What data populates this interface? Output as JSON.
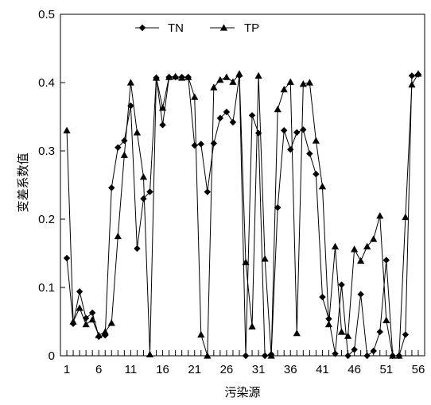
{
  "chart_data": {
    "type": "line",
    "xlabel": "污染源",
    "ylabel": "变差系数值",
    "xlim": [
      0,
      57
    ],
    "ylim": [
      0,
      0.5
    ],
    "x_ticks": [
      1,
      6,
      11,
      16,
      21,
      26,
      31,
      36,
      41,
      46,
      51,
      56
    ],
    "y_ticks": [
      0,
      0.1,
      0.2,
      0.3,
      0.4,
      0.5
    ],
    "y_tick_labels": [
      "0",
      "0.1",
      "0.2",
      "0.3",
      "0.4",
      "0.5"
    ],
    "grid": false,
    "legend_position": "top-left",
    "x": [
      1,
      2,
      3,
      4,
      5,
      6,
      7,
      8,
      9,
      10,
      11,
      12,
      13,
      14,
      15,
      16,
      17,
      18,
      19,
      20,
      21,
      22,
      23,
      24,
      25,
      26,
      27,
      28,
      29,
      30,
      31,
      32,
      33,
      34,
      35,
      36,
      37,
      38,
      39,
      40,
      41,
      42,
      43,
      44,
      45,
      46,
      47,
      48,
      49,
      50,
      51,
      52,
      53,
      54,
      55,
      56
    ],
    "series": [
      {
        "name": "TN",
        "marker": "diamond",
        "values": [
          0.143,
          0.047,
          0.094,
          0.055,
          0.063,
          0.028,
          0.03,
          0.246,
          0.305,
          0.315,
          0.366,
          0.157,
          0.23,
          0.24,
          0.407,
          0.338,
          0.408,
          0.408,
          0.408,
          0.408,
          0.308,
          0.31,
          0.24,
          0.311,
          0.348,
          0.357,
          0.342,
          0.41,
          0.0,
          0.352,
          0.326,
          0.0,
          0.002,
          0.217,
          0.33,
          0.302,
          0.327,
          0.331,
          0.296,
          0.266,
          0.086,
          0.054,
          0.003,
          0.104,
          0.0,
          0.009,
          0.09,
          0.0,
          0.007,
          0.035,
          0.14,
          0.0,
          0.0,
          0.031,
          0.41,
          0.412
        ]
      },
      {
        "name": "TP",
        "marker": "triangle",
        "values": [
          0.33,
          0.05,
          0.07,
          0.046,
          0.053,
          0.03,
          0.035,
          0.048,
          0.175,
          0.294,
          0.4,
          0.327,
          0.262,
          0.002,
          0.407,
          0.363,
          0.408,
          0.409,
          0.407,
          0.408,
          0.379,
          0.031,
          0.0,
          0.393,
          0.404,
          0.408,
          0.401,
          0.413,
          0.137,
          0.043,
          0.41,
          0.142,
          0.0,
          0.361,
          0.39,
          0.401,
          0.033,
          0.398,
          0.4,
          0.315,
          0.248,
          0.046,
          0.16,
          0.035,
          0.029,
          0.156,
          0.139,
          0.16,
          0.171,
          0.205,
          0.052,
          0.0,
          0.0,
          0.203,
          0.397,
          0.413
        ]
      }
    ]
  }
}
